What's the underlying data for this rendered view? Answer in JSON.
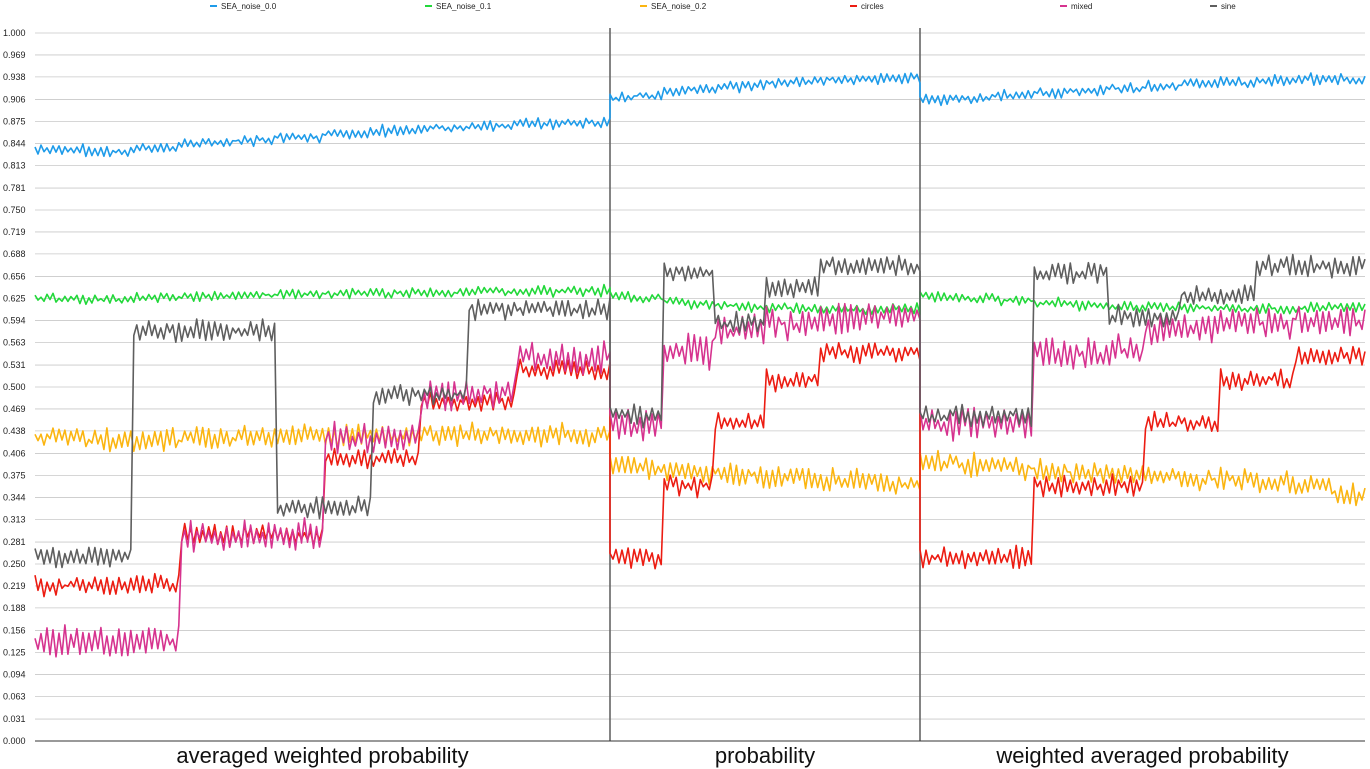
{
  "chart_data": {
    "type": "line",
    "title": "",
    "xlabel": "",
    "ylabel": "",
    "ylim": [
      0,
      1.0
    ],
    "y_ticks": [
      "0.000",
      "0.031",
      "0.063",
      "0.094",
      "0.125",
      "0.156",
      "0.188",
      "0.219",
      "0.250",
      "0.281",
      "0.313",
      "0.344",
      "0.375",
      "0.406",
      "0.438",
      "0.469",
      "0.500",
      "0.531",
      "0.563",
      "0.594",
      "0.625",
      "0.656",
      "0.688",
      "0.719",
      "0.750",
      "0.781",
      "0.813",
      "0.844",
      "0.875",
      "0.906",
      "0.938",
      "0.969",
      "1.000"
    ],
    "grid": true,
    "legend_position": "top",
    "sections": [
      "averaged weighted probability",
      "probability",
      "weighted averaged probability"
    ],
    "series": [
      {
        "name": "SEA_noise_0.0",
        "color": "#1e9be9",
        "segments": [
          {
            "levels": [
              0.835,
              0.832,
              0.838,
              0.845,
              0.848,
              0.852,
              0.858,
              0.862,
              0.866,
              0.869,
              0.872,
              0.873
            ]
          },
          {
            "levels": [
              0.908,
              0.912,
              0.917,
              0.921,
              0.924,
              0.927,
              0.929,
              0.931,
              0.933,
              0.935,
              0.936,
              0.936
            ]
          },
          {
            "levels": [
              0.906,
              0.908,
              0.912,
              0.915,
              0.918,
              0.922,
              0.925,
              0.928,
              0.93,
              0.933,
              0.935,
              0.934
            ]
          }
        ],
        "noise": 0.006
      },
      {
        "name": "SEA_noise_0.1",
        "color": "#22d83a",
        "segments": [
          {
            "levels": [
              0.625,
              0.624,
              0.626,
              0.628,
              0.63,
              0.631,
              0.632,
              0.633,
              0.634,
              0.635,
              0.635,
              0.636
            ]
          },
          {
            "levels": [
              0.628,
              0.625,
              0.62,
              0.617,
              0.615,
              0.613,
              0.612,
              0.611,
              0.61,
              0.61,
              0.611,
              0.611
            ]
          },
          {
            "levels": [
              0.628,
              0.625,
              0.622,
              0.619,
              0.616,
              0.614,
              0.613,
              0.612,
              0.611,
              0.611,
              0.612,
              0.612
            ]
          }
        ],
        "noise": 0.006
      },
      {
        "name": "SEA_noise_0.2",
        "color": "#fbb511",
        "segments": [
          {
            "levels": [
              0.427,
              0.425,
              0.424,
              0.427,
              0.429,
              0.43,
              0.431,
              0.432,
              0.432,
              0.433,
              0.432,
              0.432
            ]
          },
          {
            "levels": [
              0.392,
              0.385,
              0.382,
              0.379,
              0.377,
              0.375,
              0.373,
              0.371,
              0.369,
              0.367,
              0.365,
              0.364
            ]
          },
          {
            "levels": [
              0.395,
              0.39,
              0.385,
              0.382,
              0.378,
              0.376,
              0.373,
              0.37,
              0.368,
              0.365,
              0.362,
              0.35
            ]
          }
        ],
        "noise": 0.013
      },
      {
        "name": "circles",
        "color": "#ec1c12",
        "segments": [
          {
            "levels": [
              0.22,
              0.22,
              0.22,
              0.29,
              0.29,
              0.29,
              0.4,
              0.4,
              0.48,
              0.48,
              0.525,
              0.525
            ]
          },
          {
            "levels": [
              0.26,
              0.26,
              0.36,
              0.36,
              0.45,
              0.45,
              0.51,
              0.51,
              0.55,
              0.55,
              0.55,
              0.55
            ]
          },
          {
            "levels": [
              0.26,
              0.26,
              0.26,
              0.36,
              0.36,
              0.36,
              0.45,
              0.45,
              0.51,
              0.51,
              0.545,
              0.545
            ]
          }
        ],
        "noise": 0.012
      },
      {
        "name": "mixed",
        "color": "#d6338f",
        "segments": [
          {
            "levels": [
              0.14,
              0.14,
              0.14,
              0.29,
              0.29,
              0.29,
              0.43,
              0.43,
              0.49,
              0.49,
              0.54,
              0.54
            ]
          },
          {
            "levels": [
              0.45,
              0.45,
              0.55,
              0.55,
              0.58,
              0.58,
              0.59,
              0.59,
              0.595,
              0.595,
              0.6,
              0.6
            ]
          },
          {
            "levels": [
              0.45,
              0.45,
              0.45,
              0.55,
              0.55,
              0.55,
              0.58,
              0.58,
              0.59,
              0.59,
              0.595,
              0.595
            ]
          }
        ],
        "noise": 0.018
      },
      {
        "name": "sine",
        "color": "#5e5e5e",
        "segments": [
          {
            "levels": [
              0.26,
              0.26,
              0.58,
              0.58,
              0.58,
              0.33,
              0.33,
              0.49,
              0.49,
              0.61,
              0.61,
              0.61
            ]
          },
          {
            "levels": [
              0.46,
              0.46,
              0.66,
              0.66,
              0.59,
              0.59,
              0.64,
              0.64,
              0.67,
              0.67,
              0.67,
              0.67
            ]
          },
          {
            "levels": [
              0.46,
              0.46,
              0.46,
              0.66,
              0.66,
              0.6,
              0.6,
              0.63,
              0.63,
              0.67,
              0.67,
              0.67
            ]
          }
        ],
        "noise": 0.012
      }
    ]
  }
}
